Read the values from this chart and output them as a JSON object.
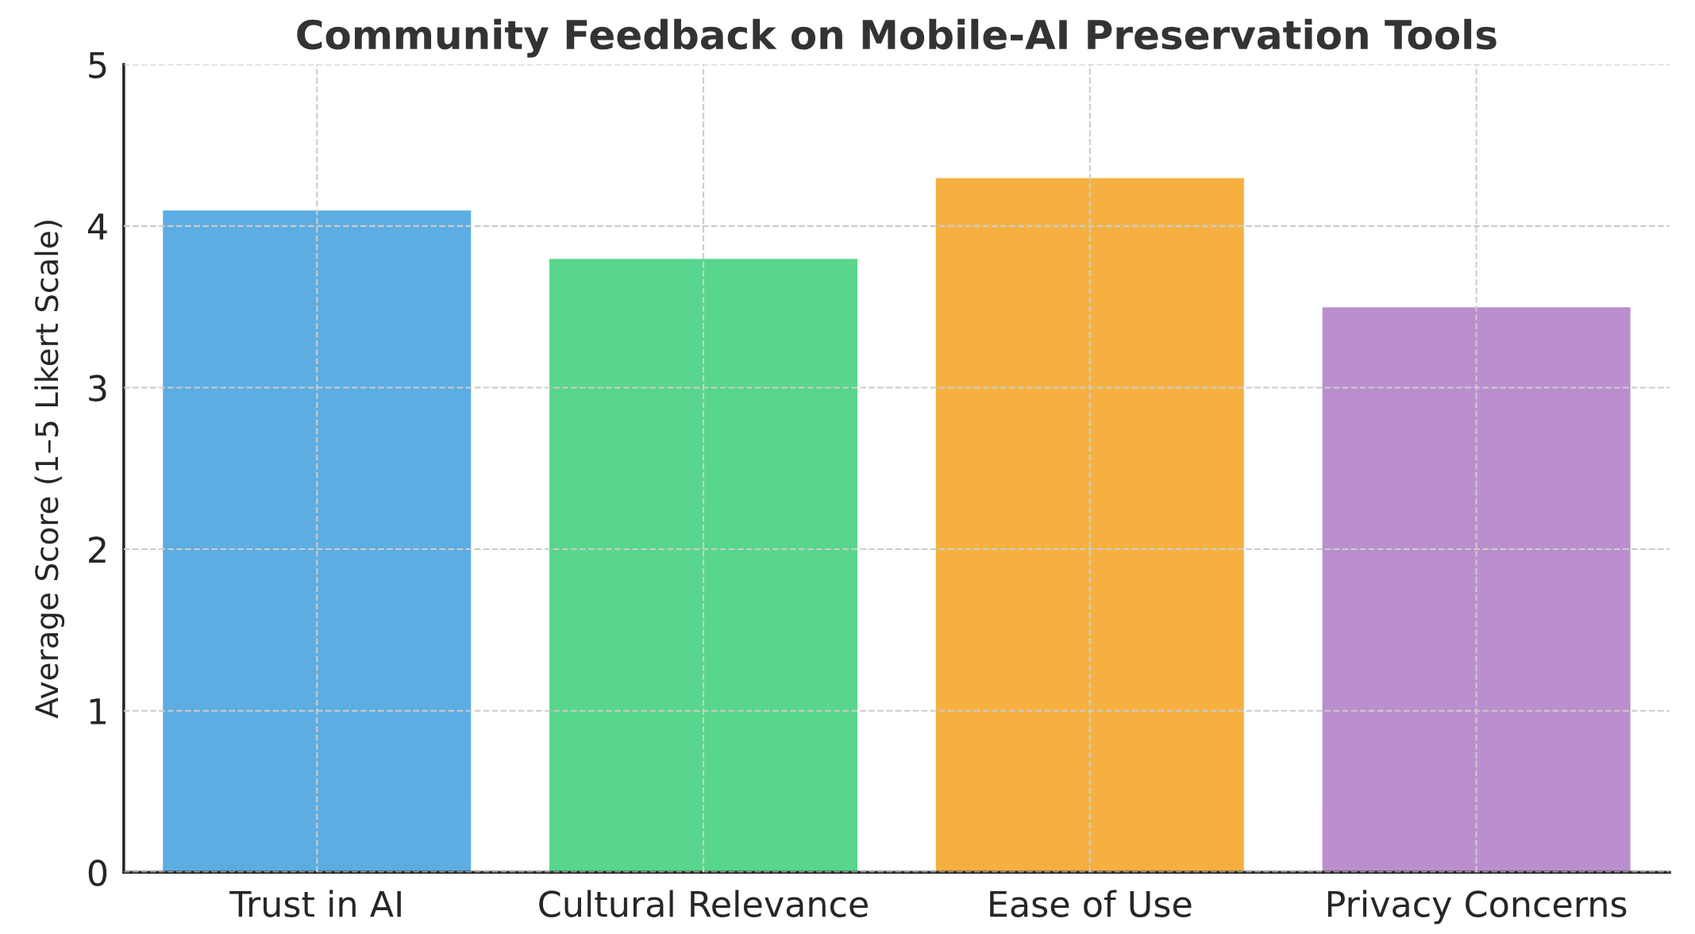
{
  "chart_data": {
    "type": "bar",
    "title": "Community Feedback on Mobile-AI Preservation Tools",
    "ylabel": "Average Score (1–5 Likert Scale)",
    "categories": [
      "Trust in AI",
      "Cultural Relevance",
      "Ease of Use",
      "Privacy Concerns"
    ],
    "values": [
      4.1,
      3.8,
      4.3,
      3.5
    ],
    "colors": [
      "#5dade2",
      "#58d68d",
      "#f5b041",
      "#bb8fce"
    ],
    "ylim": [
      0,
      5
    ],
    "yticks": [
      0,
      1,
      2,
      3,
      4,
      5
    ],
    "grid": true
  }
}
